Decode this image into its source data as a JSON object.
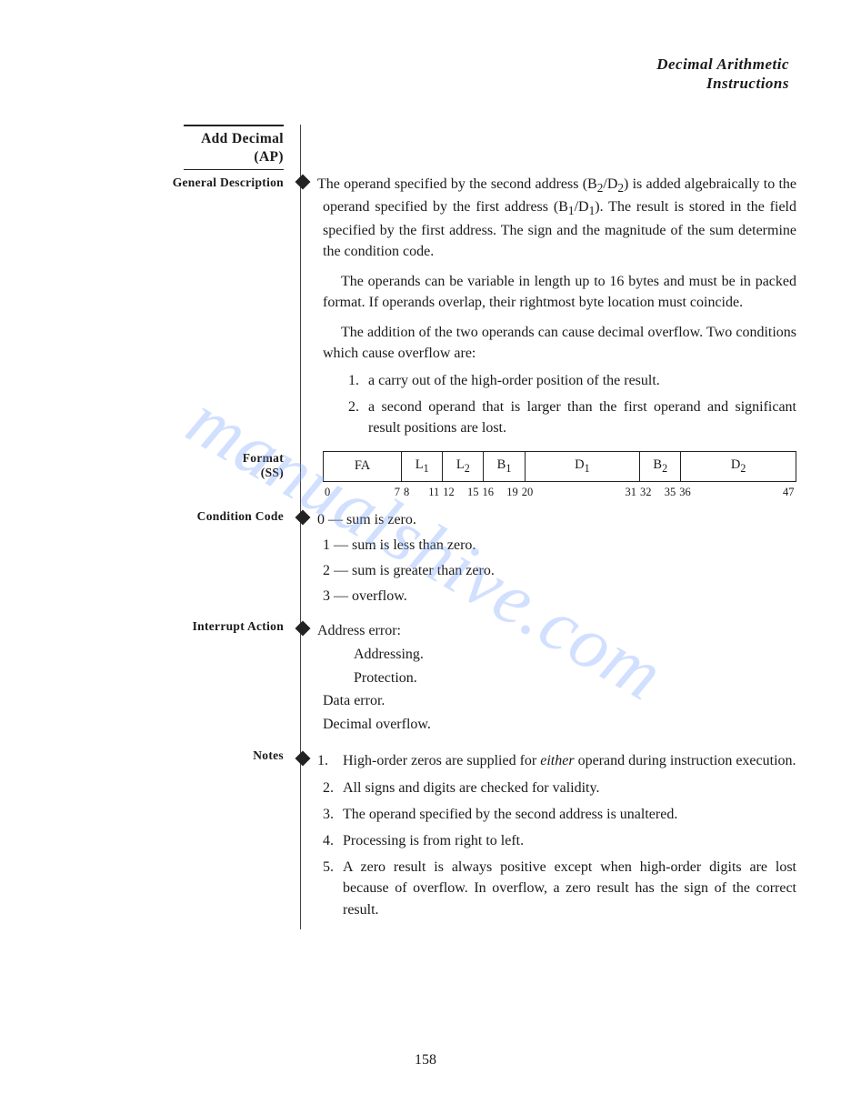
{
  "header": {
    "line1": "Decimal Arithmetic",
    "line2": "Instructions"
  },
  "instruction": {
    "title_line1": "Add Decimal",
    "title_line2": "(AP)"
  },
  "labels": {
    "general": "General Description",
    "format": "Format",
    "format_sub": "(SS)",
    "cond": "Condition Code",
    "interrupt": "Interrupt Action",
    "notes": "Notes"
  },
  "general": {
    "p1_a": "The operand specified by the second address (B",
    "p1_b": "/D",
    "p1_c": ") is added algebraically to the operand specified by the first address (B",
    "p1_d": "/D",
    "p1_e": "). The result is stored in the field specified by the first address. The sign and the magnitude of the sum determine the condition code.",
    "p2": "The operands can be variable in length up to 16 bytes and must be in packed format. If operands overlap, their rightmost byte location must coincide.",
    "p3": "The addition of the two operands can cause decimal overflow. Two conditions which cause overflow are:",
    "ov1": "a carry out of the high-order position of the result.",
    "ov2": "a second operand that is larger than the first operand and significant result positions are lost."
  },
  "format_diagram": {
    "cells": [
      {
        "label": "FA",
        "width_pct": 16.7,
        "bit_lo": "0",
        "bit_hi": "7"
      },
      {
        "label": "L",
        "sub": "1",
        "width_pct": 8.3,
        "bit_lo": "8",
        "bit_hi": "11"
      },
      {
        "label": "L",
        "sub": "2",
        "width_pct": 8.3,
        "bit_lo": "12",
        "bit_hi": "15"
      },
      {
        "label": "B",
        "sub": "1",
        "width_pct": 8.3,
        "bit_lo": "16",
        "bit_hi": "19"
      },
      {
        "label": "D",
        "sub": "1",
        "width_pct": 25.0,
        "bit_lo": "20",
        "bit_hi": "31"
      },
      {
        "label": "B",
        "sub": "2",
        "width_pct": 8.3,
        "bit_lo": "32",
        "bit_hi": "35"
      },
      {
        "label": "D",
        "sub": "2",
        "width_pct": 25.0,
        "bit_lo": "36",
        "bit_hi": "47"
      }
    ]
  },
  "cond_codes": {
    "c0": "0 — sum is zero.",
    "c1": "1 — sum is less than zero.",
    "c2": "2 — sum is greater than zero.",
    "c3": "3 — overflow."
  },
  "interrupt": {
    "i1": "Address error:",
    "i1a": "Addressing.",
    "i1b": "Protection.",
    "i2": "Data error.",
    "i3": "Decimal overflow."
  },
  "notes": {
    "n1_a": "High-order zeros are supplied for ",
    "n1_em": "either",
    "n1_b": " operand during instruction execution.",
    "n2": "All signs and digits are checked for validity.",
    "n3": "The operand specified by the second address is unaltered.",
    "n4": "Processing is from right to left.",
    "n5": "A zero result is always positive except when high-order digits are lost because of overflow. In overflow, a zero result has the sign of the correct result."
  },
  "page_number": "158",
  "watermark": "manualshive.com"
}
